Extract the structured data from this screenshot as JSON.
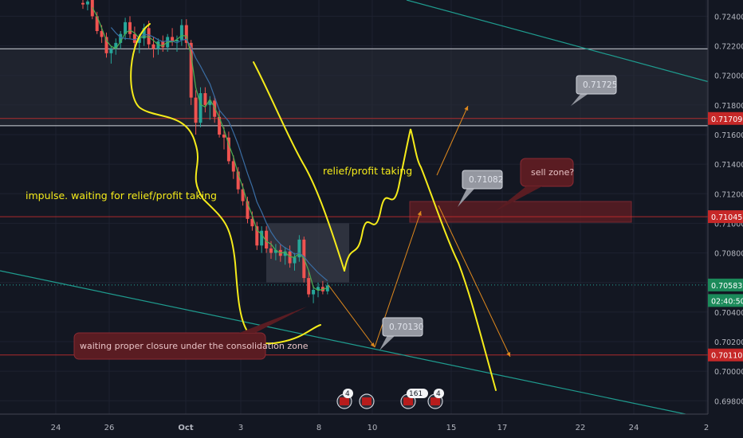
{
  "colors": {
    "background": "#131722",
    "grid": "#1e2230",
    "axis_text": "#b2b5be",
    "bull": "#26a69a",
    "bear": "#ef5350",
    "annotation_yellow": "#f5eb1a",
    "arrow_orange": "#e0891d",
    "trendline": "#1f9c8f",
    "zone_dark": "#2a2e39",
    "zone_red": "#5a1c22",
    "level_red": "#d32f2f",
    "ma_green": "#4caf50",
    "ma_blue": "#3a6ea5"
  },
  "chart_data": {
    "type": "candlestick",
    "symbol_axis": "price",
    "ylim": [
      0.6971,
      0.7251
    ],
    "y_ticks": [
      "0.72400",
      "0.72200",
      "0.72000",
      "0.71800",
      "0.71600",
      "0.71400",
      "0.71200",
      "0.71000",
      "0.70800",
      "0.70600",
      "0.70400",
      "0.70200",
      "0.70000",
      "0.69800"
    ],
    "x_ticks": [
      "24",
      "26",
      "Oct",
      "3",
      "8",
      "10",
      "15",
      "17",
      "22",
      "24",
      "2"
    ],
    "price_labels": [
      {
        "text": "0.71709",
        "value": 0.71709,
        "style": "red"
      },
      {
        "text": "0.71045",
        "value": 0.71045,
        "style": "red"
      },
      {
        "text": "0.70583",
        "value": 0.70583,
        "style": "green"
      },
      {
        "text": "02:40:50",
        "value": 0.70478,
        "style": "green"
      },
      {
        "text": "0.70110",
        "value": 0.7011,
        "style": "red"
      }
    ],
    "callouts": [
      {
        "text": "0.71725",
        "value": 0.71725
      },
      {
        "text": "0.71082",
        "value": 0.71082
      },
      {
        "text": "0.70130",
        "value": 0.7013
      }
    ],
    "annotations": [
      {
        "text": "impulse. waiting for relief/profit taking"
      },
      {
        "text": "relief/profit taking"
      }
    ],
    "note_boxes": [
      {
        "text": "waiting proper closure under the consolidation zone"
      },
      {
        "text": "sell zone?"
      }
    ],
    "event_badges": [
      {
        "count": "4"
      },
      {
        "count": ""
      },
      {
        "count": "161"
      },
      {
        "count": "4"
      }
    ],
    "zones": [
      {
        "name": "resistance-zone",
        "from": 0.7166,
        "to": 0.7218
      },
      {
        "name": "consolidation-zone",
        "from": 0.706,
        "to": 0.71
      },
      {
        "name": "sell-zone",
        "from": 0.71,
        "to": 0.7109
      }
    ],
    "candles": [
      [
        0.7249,
        0.7252,
        0.7245,
        0.7248
      ],
      [
        0.7248,
        0.7251,
        0.7244,
        0.725
      ],
      [
        0.7251,
        0.7253,
        0.7238,
        0.724
      ],
      [
        0.724,
        0.7243,
        0.7228,
        0.723
      ],
      [
        0.723,
        0.7234,
        0.7222,
        0.7226
      ],
      [
        0.7226,
        0.7229,
        0.7212,
        0.7215
      ],
      [
        0.7215,
        0.722,
        0.7208,
        0.7218
      ],
      [
        0.7218,
        0.7225,
        0.7214,
        0.7222
      ],
      [
        0.7222,
        0.723,
        0.7218,
        0.7228
      ],
      [
        0.7228,
        0.7239,
        0.7224,
        0.7236
      ],
      [
        0.7236,
        0.724,
        0.7225,
        0.7228
      ],
      [
        0.7228,
        0.7233,
        0.7218,
        0.7222
      ],
      [
        0.7222,
        0.7228,
        0.7215,
        0.7225
      ],
      [
        0.7225,
        0.7235,
        0.722,
        0.7232
      ],
      [
        0.7232,
        0.7237,
        0.7218,
        0.7221
      ],
      [
        0.7221,
        0.7226,
        0.7212,
        0.7218
      ],
      [
        0.7218,
        0.7225,
        0.7214,
        0.7223
      ],
      [
        0.7223,
        0.7227,
        0.7216,
        0.7219
      ],
      [
        0.7219,
        0.7228,
        0.7216,
        0.7226
      ],
      [
        0.7226,
        0.7232,
        0.722,
        0.7223
      ],
      [
        0.7223,
        0.7227,
        0.7216,
        0.7224
      ],
      [
        0.7224,
        0.7238,
        0.722,
        0.7234
      ],
      [
        0.7234,
        0.7238,
        0.7218,
        0.7222
      ],
      [
        0.7222,
        0.7224,
        0.718,
        0.7185
      ],
      [
        0.7185,
        0.719,
        0.716,
        0.7168
      ],
      [
        0.7168,
        0.7192,
        0.7165,
        0.7188
      ],
      [
        0.7188,
        0.7192,
        0.7175,
        0.718
      ],
      [
        0.718,
        0.7186,
        0.717,
        0.7183
      ],
      [
        0.7183,
        0.7186,
        0.7168,
        0.7172
      ],
      [
        0.7172,
        0.7176,
        0.7158,
        0.716
      ],
      [
        0.716,
        0.7165,
        0.715,
        0.7158
      ],
      [
        0.7158,
        0.7162,
        0.714,
        0.7142
      ],
      [
        0.7142,
        0.7146,
        0.713,
        0.7135
      ],
      [
        0.7135,
        0.7138,
        0.712,
        0.7123
      ],
      [
        0.7123,
        0.7127,
        0.7112,
        0.7115
      ],
      [
        0.7115,
        0.7118,
        0.71,
        0.7103
      ],
      [
        0.7103,
        0.7108,
        0.7095,
        0.7098
      ],
      [
        0.7098,
        0.7101,
        0.7082,
        0.7085
      ],
      [
        0.7085,
        0.7098,
        0.708,
        0.7095
      ],
      [
        0.7095,
        0.7098,
        0.708,
        0.7083
      ],
      [
        0.7083,
        0.7088,
        0.7076,
        0.708
      ],
      [
        0.708,
        0.7086,
        0.7075,
        0.7082
      ],
      [
        0.7082,
        0.7086,
        0.7074,
        0.7078
      ],
      [
        0.7078,
        0.7084,
        0.7072,
        0.7081
      ],
      [
        0.7081,
        0.7085,
        0.707,
        0.7073
      ],
      [
        0.7073,
        0.708,
        0.7068,
        0.7077
      ],
      [
        0.7077,
        0.7092,
        0.7074,
        0.7089
      ],
      [
        0.7089,
        0.7091,
        0.706,
        0.7063
      ],
      [
        0.7063,
        0.7068,
        0.705,
        0.7052
      ],
      [
        0.7052,
        0.7058,
        0.7046,
        0.7055
      ],
      [
        0.7055,
        0.706,
        0.705,
        0.7057
      ],
      [
        0.7057,
        0.7061,
        0.7052,
        0.7054
      ],
      [
        0.7054,
        0.706,
        0.7052,
        0.7058
      ]
    ]
  }
}
